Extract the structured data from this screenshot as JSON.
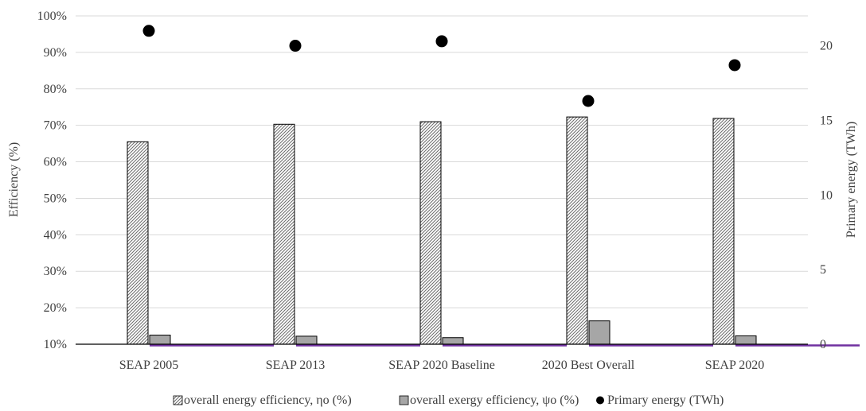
{
  "chart_data": {
    "type": "bar",
    "title": "",
    "categories": [
      "SEAP 2005",
      "SEAP 2013",
      "SEAP 2020 Baseline",
      "2020 Best Overall",
      "SEAP 2020"
    ],
    "ylabel": "Efficiency (%)",
    "y2label": "Primary energy (TWh)",
    "ylim": [
      10,
      100
    ],
    "y2lim": [
      0,
      22
    ],
    "yticks": [
      "10%",
      "20%",
      "30%",
      "40%",
      "50%",
      "60%",
      "70%",
      "80%",
      "90%",
      "100%"
    ],
    "y2ticks": [
      "0",
      "5",
      "10",
      "15",
      "20"
    ],
    "grid": true,
    "legend_position": "bottom",
    "series": [
      {
        "name": "overall energy efficiency, ηo (%)",
        "type": "bar",
        "axis": "left",
        "pattern": "hatched",
        "values": [
          65.5,
          70.3,
          71.0,
          72.3,
          71.9
        ]
      },
      {
        "name": "overall exergy efficiency, ψo (%)",
        "type": "bar",
        "axis": "left",
        "color": "#a6a6a6",
        "values": [
          12.5,
          12.2,
          11.8,
          16.4,
          12.3
        ]
      },
      {
        "name": "Primary energy  (TWh)",
        "type": "scatter",
        "axis": "right",
        "color": "#000000",
        "values": [
          21.0,
          20.0,
          20.3,
          16.3,
          18.7
        ]
      }
    ],
    "baseline_color": "#7030a0"
  }
}
